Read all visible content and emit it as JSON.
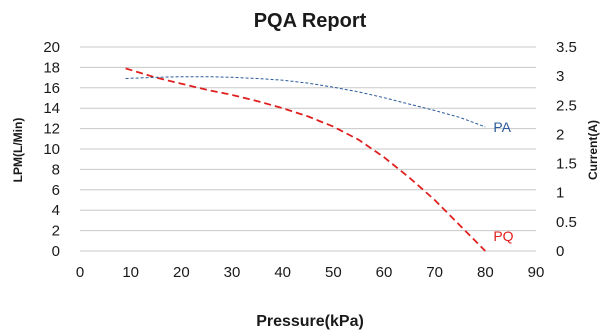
{
  "chart_data": {
    "type": "line",
    "title": "PQA Report",
    "xlabel": "Pressure(kPa)",
    "ylabel": "LPM(L/Min)",
    "y2label": "Current(A)",
    "xlim": [
      0,
      90
    ],
    "ylim": [
      0,
      20
    ],
    "y2lim": [
      0,
      3.5
    ],
    "xticks": [
      "0",
      "10",
      "20",
      "30",
      "40",
      "50",
      "60",
      "70",
      "80",
      "90"
    ],
    "yticks": [
      "0",
      "2",
      "4",
      "6",
      "8",
      "10",
      "12",
      "14",
      "16",
      "18",
      "20"
    ],
    "y2ticks": [
      "0",
      "0.5",
      "1",
      "1.5",
      "2",
      "2.5",
      "3",
      "3.5"
    ],
    "grid": "horizontal",
    "series": [
      {
        "name": "PQ",
        "axis": "left",
        "color": "#e02020",
        "style": "dashed",
        "x": [
          9,
          15,
          20,
          25,
          30,
          35,
          40,
          45,
          50,
          55,
          60,
          65,
          70,
          75,
          80
        ],
        "y": [
          17.9,
          17.0,
          16.4,
          15.8,
          15.3,
          14.7,
          14.0,
          13.2,
          12.2,
          10.9,
          9.2,
          7.2,
          5.0,
          2.5,
          0
        ]
      },
      {
        "name": "PA",
        "axis": "right",
        "color": "#2a5a9a",
        "style": "dashed",
        "x": [
          9,
          15,
          20,
          25,
          30,
          35,
          40,
          45,
          50,
          55,
          60,
          65,
          70,
          75,
          80
        ],
        "y": [
          2.96,
          2.98,
          2.99,
          2.99,
          2.98,
          2.96,
          2.93,
          2.88,
          2.81,
          2.73,
          2.63,
          2.52,
          2.41,
          2.29,
          2.13
        ]
      }
    ]
  }
}
